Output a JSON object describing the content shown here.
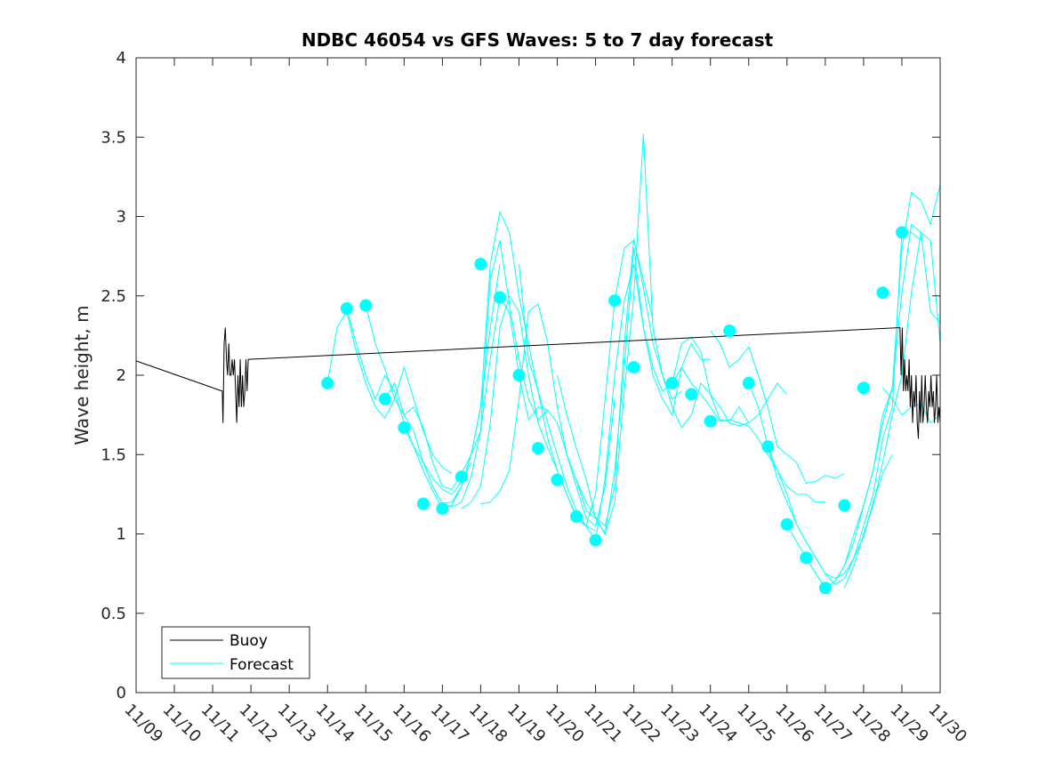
{
  "chart_data": {
    "type": "line",
    "title": "NDBC 46054 vs GFS Waves: 5 to 7 day forecast",
    "xlabel": "",
    "ylabel": "Wave height, m",
    "ylim": [
      0,
      4
    ],
    "yticks": [
      0,
      0.5,
      1,
      1.5,
      2,
      2.5,
      3,
      3.5,
      4
    ],
    "ytick_labels": [
      "0",
      "0.5",
      "1",
      "1.5",
      "2",
      "2.5",
      "3",
      "3.5",
      "4"
    ],
    "xlim": [
      0,
      21
    ],
    "xticks": [
      0,
      1,
      2,
      3,
      4,
      5,
      6,
      7,
      8,
      9,
      10,
      11,
      12,
      13,
      14,
      15,
      16,
      17,
      18,
      19,
      20,
      21
    ],
    "xtick_labels": [
      "11/09",
      "11/10",
      "11/11",
      "11/12",
      "11/13",
      "11/14",
      "11/15",
      "11/16",
      "11/17",
      "11/18",
      "11/19",
      "11/20",
      "11/21",
      "11/22",
      "11/23",
      "11/24",
      "11/25",
      "11/26",
      "11/27",
      "11/28",
      "11/29",
      "11/30"
    ],
    "x_unit": "days since 11/09",
    "grid": false,
    "legend": {
      "location": "bottom-left",
      "entries": [
        "Buoy",
        "Forecast"
      ]
    },
    "colors": {
      "buoy": "#000000",
      "forecast": "#00ffff",
      "axis": "#262626"
    },
    "series": [
      {
        "name": "Buoy",
        "color": "#000000",
        "x": [
          0,
          2.25,
          2.27,
          2.3,
          2.33,
          2.36,
          2.39,
          2.42,
          2.45,
          2.48,
          2.51,
          2.54,
          2.57,
          2.6,
          2.63,
          2.66,
          2.69,
          2.72,
          2.75,
          2.78,
          2.81,
          2.84,
          2.87,
          2.9,
          2.93,
          2.96,
          19.95,
          19.98,
          20.01,
          20.04,
          20.07,
          20.1,
          20.13,
          20.16,
          20.19,
          20.22,
          20.25,
          20.28,
          20.31,
          20.34,
          20.37,
          20.4,
          20.43,
          20.46,
          20.49,
          20.52,
          20.55,
          20.58,
          20.61,
          20.64,
          20.67,
          20.7,
          20.73,
          20.76,
          20.79,
          20.82,
          20.85,
          20.88,
          20.91,
          20.94,
          20.97,
          21.0
        ],
        "values": [
          2.09,
          1.9,
          1.7,
          2.2,
          2.3,
          2.1,
          2.0,
          2.2,
          2.0,
          2.0,
          2.1,
          2.0,
          2.1,
          1.9,
          1.7,
          2.0,
          1.8,
          2.1,
          1.8,
          2.0,
          1.8,
          1.9,
          2.1,
          1.9,
          2.1,
          2.1,
          2.3,
          2.0,
          2.3,
          1.9,
          2.1,
          1.9,
          2.0,
          1.9,
          2.1,
          1.8,
          2.0,
          1.7,
          1.9,
          1.8,
          2.0,
          1.7,
          1.6,
          1.9,
          1.7,
          2.0,
          1.7,
          1.8,
          2.0,
          1.8,
          1.7,
          1.9,
          1.8,
          2.0,
          1.8,
          1.9,
          1.7,
          1.8,
          2.0,
          1.7,
          1.8,
          1.7
        ]
      },
      {
        "name": "Forecast",
        "color": "#00ffff",
        "segments": [
          {
            "x": [
              5.0,
              5.25,
              5.5,
              5.75,
              6.0,
              6.25,
              6.5,
              6.75,
              7.0,
              7.25,
              7.5,
              7.75,
              8.0,
              8.25
            ],
            "values": [
              1.95,
              2.3,
              2.4,
              2.15,
              1.95,
              1.8,
              1.73,
              1.85,
              2.05,
              1.85,
              1.65,
              1.5,
              1.42,
              1.38
            ]
          },
          {
            "x": [
              5.5,
              5.75,
              6.0,
              6.25,
              6.5,
              6.75,
              7.0,
              7.25,
              7.5,
              7.75,
              8.0,
              8.25,
              8.5,
              8.75
            ],
            "values": [
              2.42,
              2.2,
              2.0,
              1.85,
              2.0,
              1.9,
              1.7,
              1.55,
              1.45,
              1.35,
              1.28,
              1.25,
              1.33,
              1.45
            ]
          },
          {
            "x": [
              6.0,
              6.25,
              6.5,
              6.75,
              7.0,
              7.25,
              7.5,
              7.75,
              8.0,
              8.25,
              8.5,
              8.75,
              9.0,
              9.25,
              9.5
            ],
            "values": [
              2.44,
              2.2,
              2.04,
              1.85,
              1.75,
              1.8,
              1.67,
              1.45,
              1.3,
              1.28,
              1.38,
              1.5,
              1.8,
              2.3,
              2.7
            ]
          },
          {
            "x": [
              6.5,
              6.75,
              7.0,
              7.25,
              7.5,
              7.75,
              8.0,
              8.25,
              8.5,
              8.75,
              9.0,
              9.25,
              9.5,
              9.75,
              10.0,
              10.25,
              10.5,
              10.75
            ],
            "values": [
              1.85,
              1.95,
              1.75,
              1.65,
              1.45,
              1.3,
              1.19,
              1.2,
              1.3,
              1.5,
              1.65,
              2.6,
              2.85,
              2.45,
              2.1,
              1.85,
              1.72,
              1.78
            ]
          },
          {
            "x": [
              7.0,
              7.25,
              7.5,
              7.75,
              8.0,
              8.25,
              8.5,
              8.75,
              9.0,
              9.25,
              9.5,
              9.75,
              10.0,
              10.25,
              10.5,
              10.75,
              11.0,
              11.25,
              11.5,
              11.75,
              12.0
            ],
            "values": [
              1.67,
              1.55,
              1.4,
              1.27,
              1.16,
              1.18,
              1.3,
              1.5,
              1.8,
              2.7,
              3.03,
              2.9,
              2.5,
              2.2,
              1.9,
              1.7,
              1.5,
              1.3,
              1.15,
              1.05,
              1.02
            ]
          },
          {
            "x": [
              8.0,
              8.25,
              8.5,
              8.75,
              9.0,
              9.25,
              9.5,
              9.75,
              10.0,
              10.25,
              10.5,
              10.75,
              11.0,
              11.25,
              11.5,
              11.75,
              12.0,
              12.25,
              12.5
            ],
            "values": [
              1.19,
              1.17,
              1.2,
              1.36,
              1.65,
              2.1,
              2.49,
              2.4,
              2.0,
              1.72,
              1.8,
              1.78,
              1.7,
              1.5,
              1.3,
              1.1,
              1.05,
              1.3,
              1.85
            ]
          },
          {
            "x": [
              8.5,
              8.75,
              9.0,
              9.25,
              9.5,
              9.75,
              10.0,
              10.25,
              10.5,
              10.75,
              11.0,
              11.25,
              11.5,
              11.75,
              12.0,
              12.25,
              12.5,
              12.75,
              13.0,
              13.25,
              13.5
            ],
            "values": [
              1.16,
              1.2,
              1.3,
              1.7,
              2.3,
              2.5,
              2.4,
              2.0,
              1.7,
              1.54,
              1.4,
              1.25,
              1.1,
              1.05,
              1.25,
              1.85,
              2.47,
              2.8,
              2.85,
              2.6,
              2.35
            ]
          },
          {
            "x": [
              9.0,
              9.25,
              9.5,
              9.75,
              10.0,
              10.25,
              10.5,
              10.75,
              11.0,
              11.25,
              11.5,
              11.75,
              12.0,
              12.25,
              12.5,
              12.75,
              13.0,
              13.25,
              13.5,
              13.75,
              14.0,
              14.25
            ],
            "values": [
              1.19,
              1.2,
              1.27,
              1.4,
              1.85,
              2.4,
              2.45,
              2.2,
              1.8,
              1.5,
              1.34,
              1.2,
              1.11,
              1.05,
              1.3,
              2.2,
              2.86,
              2.55,
              2.2,
              2.0,
              1.85,
              1.9
            ]
          },
          {
            "x": [
              10.0,
              10.25,
              10.5,
              10.75,
              11.0,
              11.25,
              11.5,
              11.75,
              12.0,
              12.25,
              12.5,
              12.75,
              13.0,
              13.25,
              13.5,
              13.75,
              14.0,
              14.25,
              14.5,
              14.75,
              15.0
            ],
            "values": [
              2.7,
              2.1,
              1.9,
              1.6,
              1.4,
              1.25,
              1.11,
              1.05,
              0.96,
              1.35,
              2.0,
              2.47,
              2.7,
              2.3,
              2.0,
              1.85,
              1.75,
              2.05,
              2.2,
              2.1,
              2.1
            ]
          },
          {
            "x": [
              11.0,
              11.25,
              11.5,
              11.75,
              12.0,
              12.25,
              12.5,
              12.75,
              13.0,
              13.25,
              13.5,
              13.75,
              14.0,
              14.25,
              14.5,
              14.75,
              15.0,
              15.25,
              15.5,
              15.75,
              16.0
            ],
            "values": [
              2.0,
              1.75,
              1.54,
              1.35,
              1.1,
              1.0,
              1.4,
              2.05,
              2.8,
              2.3,
              2.05,
              1.9,
              1.95,
              2.2,
              2.24,
              2.15,
              1.88,
              1.72,
              1.71,
              1.8,
              1.7
            ]
          },
          {
            "x": [
              11.5,
              11.75,
              12.0,
              12.25,
              12.5,
              12.75,
              13.0,
              13.25,
              13.5,
              13.75,
              14.0,
              14.25,
              14.5,
              14.75,
              15.0,
              15.25,
              15.5,
              15.75,
              16.0,
              16.25,
              16.5,
              16.75,
              17.0
            ],
            "values": [
              1.34,
              1.15,
              1.1,
              1.0,
              1.2,
              1.9,
              2.5,
              3.52,
              2.3,
              2.0,
              1.8,
              1.67,
              1.75,
              1.95,
              1.88,
              1.8,
              1.7,
              1.68,
              1.7,
              1.75,
              1.85,
              1.95,
              1.88
            ]
          },
          {
            "x": [
              14.0,
              14.25,
              14.5,
              14.75,
              15.0,
              15.25,
              15.5,
              15.75,
              16.0,
              16.25,
              16.5,
              16.75,
              17.0,
              17.25,
              17.5,
              17.75,
              18.0
            ],
            "values": [
              1.95,
              2.05,
              1.95,
              1.88,
              1.8,
              1.71,
              1.72,
              1.7,
              1.68,
              1.6,
              1.5,
              1.4,
              1.3,
              1.25,
              1.25,
              1.2,
              1.2
            ]
          },
          {
            "x": [
              15.0,
              15.25,
              15.5,
              15.75,
              16.0,
              16.25,
              16.5,
              16.75,
              17.0,
              17.25,
              17.5,
              17.75,
              18.0,
              18.25,
              18.5
            ],
            "values": [
              2.28,
              2.2,
              2.05,
              2.1,
              2.18,
              2.0,
              1.8,
              1.55,
              1.5,
              1.45,
              1.32,
              1.33,
              1.37,
              1.35,
              1.38
            ]
          },
          {
            "x": [
              16.0,
              16.25,
              16.5,
              16.75,
              17.0,
              17.25,
              17.5,
              17.75,
              18.0,
              18.25,
              18.5,
              18.75,
              19.0,
              19.25,
              19.5,
              19.75
            ],
            "values": [
              1.95,
              1.8,
              1.55,
              1.35,
              1.2,
              1.06,
              0.95,
              0.85,
              0.75,
              0.72,
              0.75,
              0.85,
              0.98,
              1.2,
              1.38,
              1.5
            ]
          },
          {
            "x": [
              16.5,
              16.75,
              17.0,
              17.25,
              17.5,
              17.75,
              18.0,
              18.25,
              18.5,
              18.75,
              19.0,
              19.25,
              19.5,
              19.75,
              20.0,
              20.25,
              20.5
            ],
            "values": [
              1.55,
              1.4,
              1.25,
              1.06,
              0.95,
              0.85,
              0.75,
              0.68,
              0.72,
              0.85,
              1.05,
              1.25,
              1.6,
              1.8,
              2.9,
              2.9,
              2.85
            ]
          },
          {
            "x": [
              17.0,
              17.25,
              17.5,
              17.75,
              18.0,
              18.25,
              18.5,
              18.75,
              19.0,
              19.25,
              19.5,
              19.75,
              20.0,
              20.25,
              20.5,
              20.75,
              21.0
            ],
            "values": [
              1.06,
              0.95,
              0.85,
              0.75,
              0.66,
              0.7,
              0.8,
              1.0,
              1.18,
              1.4,
              1.7,
              1.92,
              2.8,
              3.15,
              3.1,
              2.95,
              3.2
            ]
          },
          {
            "x": [
              17.5,
              17.75,
              18.0,
              18.25,
              18.5,
              18.75,
              19.0,
              19.25,
              19.5,
              19.75,
              20.0,
              20.25,
              20.5,
              20.75,
              21.0
            ],
            "values": [
              0.85,
              0.75,
              0.66,
              0.7,
              0.8,
              0.95,
              1.18,
              1.4,
              1.75,
              1.92,
              2.52,
              2.95,
              2.9,
              2.4,
              2.33
            ]
          },
          {
            "x": [
              18.5,
              18.75,
              19.0,
              19.25,
              19.5,
              19.75,
              20.0,
              20.25,
              20.5,
              20.75,
              21.0
            ],
            "values": [
              0.66,
              0.8,
              1.0,
              1.18,
              1.45,
              1.75,
              2.0,
              2.52,
              2.9,
              2.85,
              2.2
            ]
          },
          {
            "x": [
              19.5,
              19.75,
              20.0,
              20.25,
              20.5,
              20.75,
              21.0
            ],
            "values": [
              1.92,
              1.85,
              1.75,
              1.8,
              1.82,
              1.7,
              1.75
            ]
          }
        ],
        "markers": {
          "x": [
            5.0,
            5.5,
            6.0,
            6.5,
            7.0,
            7.5,
            8.0,
            8.5,
            9.0,
            9.5,
            10.0,
            10.5,
            11.0,
            11.5,
            12.0,
            12.5,
            13.0,
            14.0,
            14.5,
            15.0,
            15.5,
            16.0,
            16.5,
            17.0,
            17.5,
            18.0,
            18.5,
            19.0,
            19.5,
            20.0
          ],
          "values": [
            1.95,
            2.42,
            2.44,
            1.85,
            1.67,
            1.19,
            1.16,
            1.36,
            2.7,
            2.49,
            2.0,
            1.54,
            1.34,
            1.11,
            0.96,
            2.47,
            2.05,
            1.95,
            1.88,
            1.71,
            2.28,
            1.95,
            1.55,
            1.06,
            0.85,
            0.66,
            1.18,
            1.92,
            2.52,
            2.9
          ]
        }
      }
    ]
  }
}
